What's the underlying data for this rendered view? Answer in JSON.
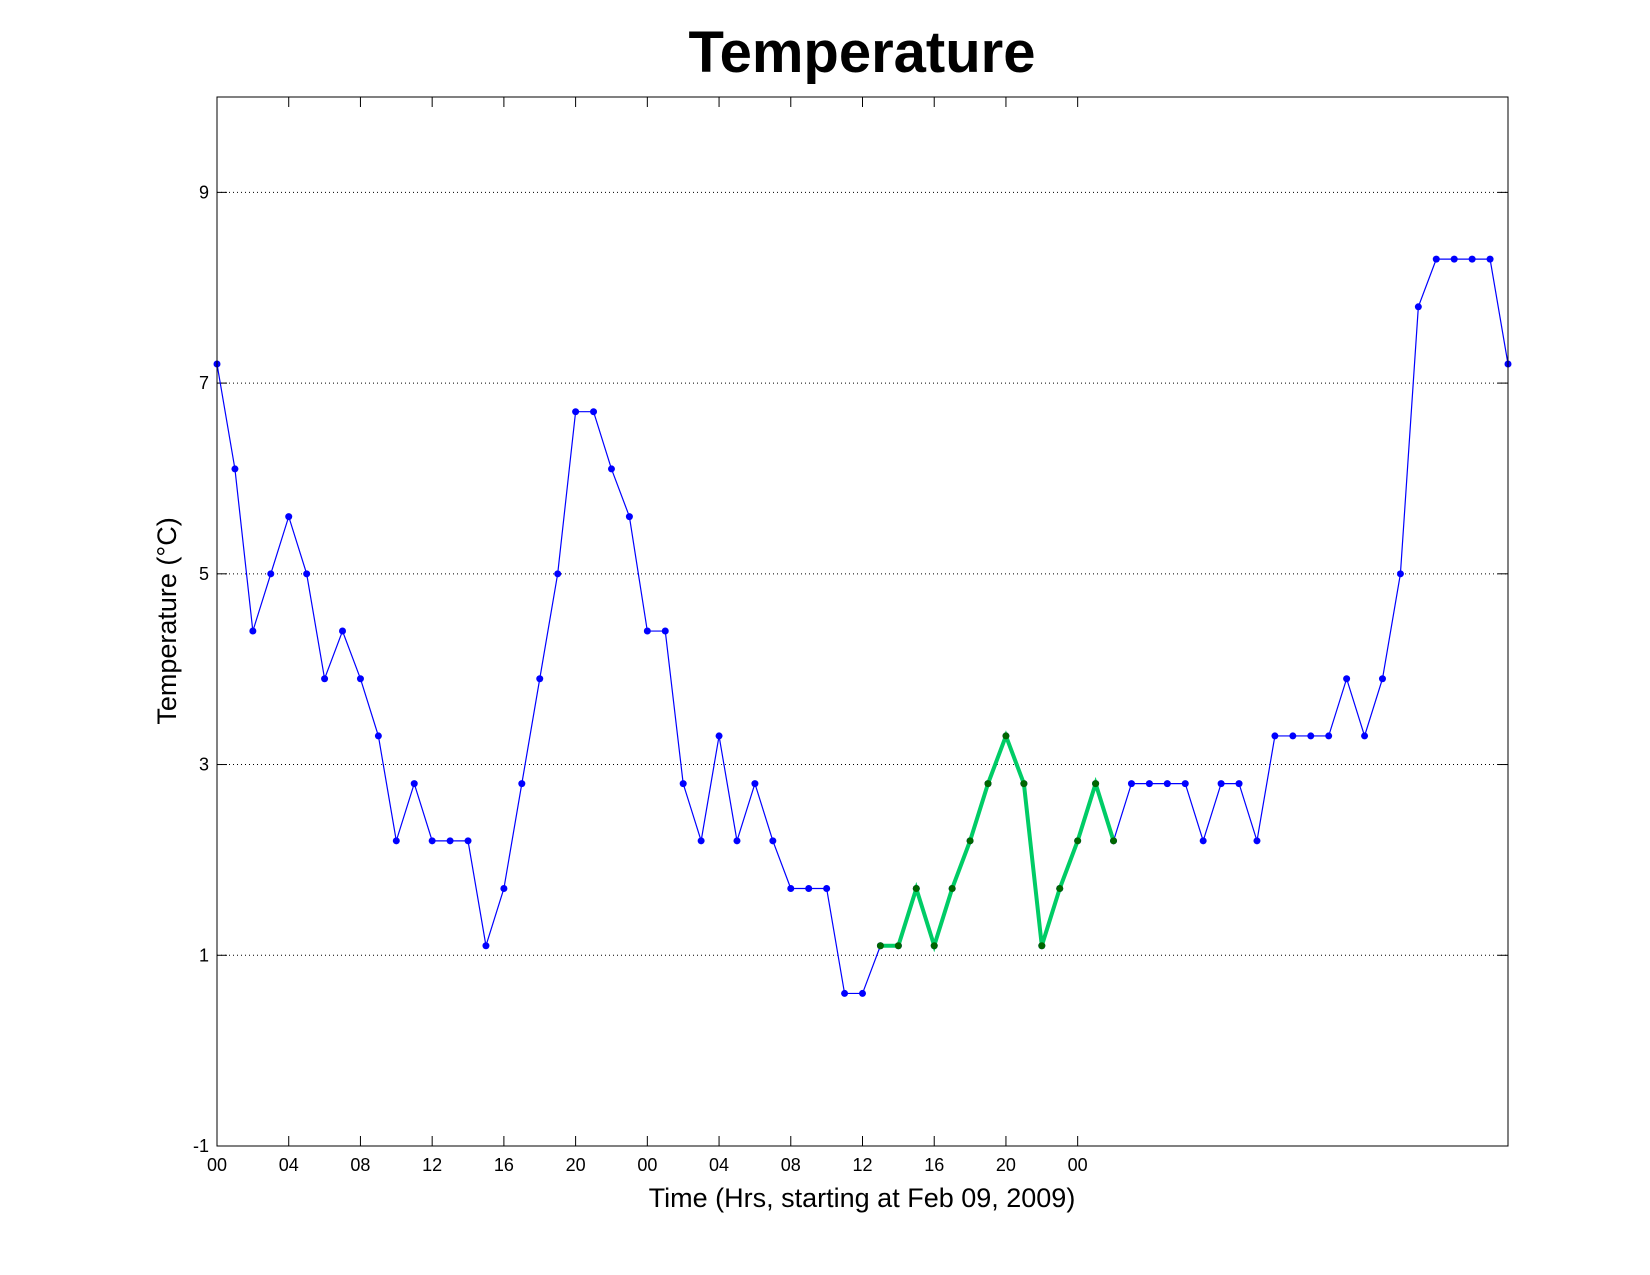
{
  "chart_data": {
    "type": "line",
    "title": "Temperature",
    "xlabel": "Time (Hrs, starting at Feb 09, 2009)",
    "ylabel": "Temperature (°C)",
    "ylim": [
      -1,
      10
    ],
    "xlim": [
      0,
      72
    ],
    "y_ticks": [
      "-1",
      "1",
      "3",
      "5",
      "7",
      "9"
    ],
    "x_ticks": [
      "00",
      "04",
      "08",
      "12",
      "16",
      "20",
      "00",
      "04",
      "08",
      "12",
      "16",
      "20",
      "00"
    ],
    "grid": "horizontal dotted",
    "series": [
      {
        "color": "#0000ff",
        "x": [
          0,
          1,
          2,
          3,
          4,
          5,
          6,
          7,
          8,
          9,
          10,
          11,
          12,
          13,
          14,
          15,
          16,
          17,
          18,
          19,
          20,
          21,
          22,
          23,
          24,
          25,
          26,
          27,
          28,
          29,
          30,
          31,
          32,
          33,
          34,
          35,
          36,
          37,
          38,
          39,
          40,
          41,
          42,
          43,
          44,
          45,
          46,
          47,
          48,
          49,
          50,
          51,
          52,
          53,
          54,
          55,
          56,
          57,
          58,
          59,
          60,
          61,
          62,
          63,
          64,
          65,
          66,
          67,
          68,
          69,
          70,
          71,
          72
        ],
        "values": [
          7.2,
          6.1,
          4.4,
          5.0,
          5.6,
          5.0,
          3.9,
          4.4,
          3.9,
          3.3,
          2.2,
          2.8,
          2.2,
          2.2,
          2.2,
          1.1,
          1.7,
          2.8,
          3.9,
          5.0,
          6.7,
          6.7,
          6.1,
          5.6,
          4.4,
          4.4,
          2.8,
          2.2,
          3.3,
          2.2,
          2.8,
          2.2,
          1.7,
          1.7,
          1.7,
          0.6,
          0.6,
          1.1,
          1.1,
          1.7,
          1.1,
          1.7,
          2.2,
          2.8,
          3.3,
          2.8,
          1.1,
          1.7,
          2.2,
          2.8,
          2.2,
          2.8,
          2.8,
          2.8,
          2.8,
          2.2,
          2.8,
          2.8,
          2.2,
          3.3,
          3.3,
          3.3,
          3.3,
          3.9,
          3.3,
          3.9,
          5.0,
          7.8,
          8.3,
          8.3,
          8.3,
          8.3,
          7.2
        ]
      },
      {
        "color": "#00cc66",
        "marker_color": "#006600",
        "x": [
          37,
          38,
          39,
          40,
          41,
          42,
          43,
          44,
          45,
          46,
          47,
          48,
          49,
          50
        ],
        "values": [
          1.1,
          1.1,
          1.7,
          1.1,
          1.7,
          2.2,
          2.8,
          3.3,
          2.8,
          1.1,
          1.7,
          2.2,
          2.8,
          2.2
        ]
      }
    ]
  }
}
